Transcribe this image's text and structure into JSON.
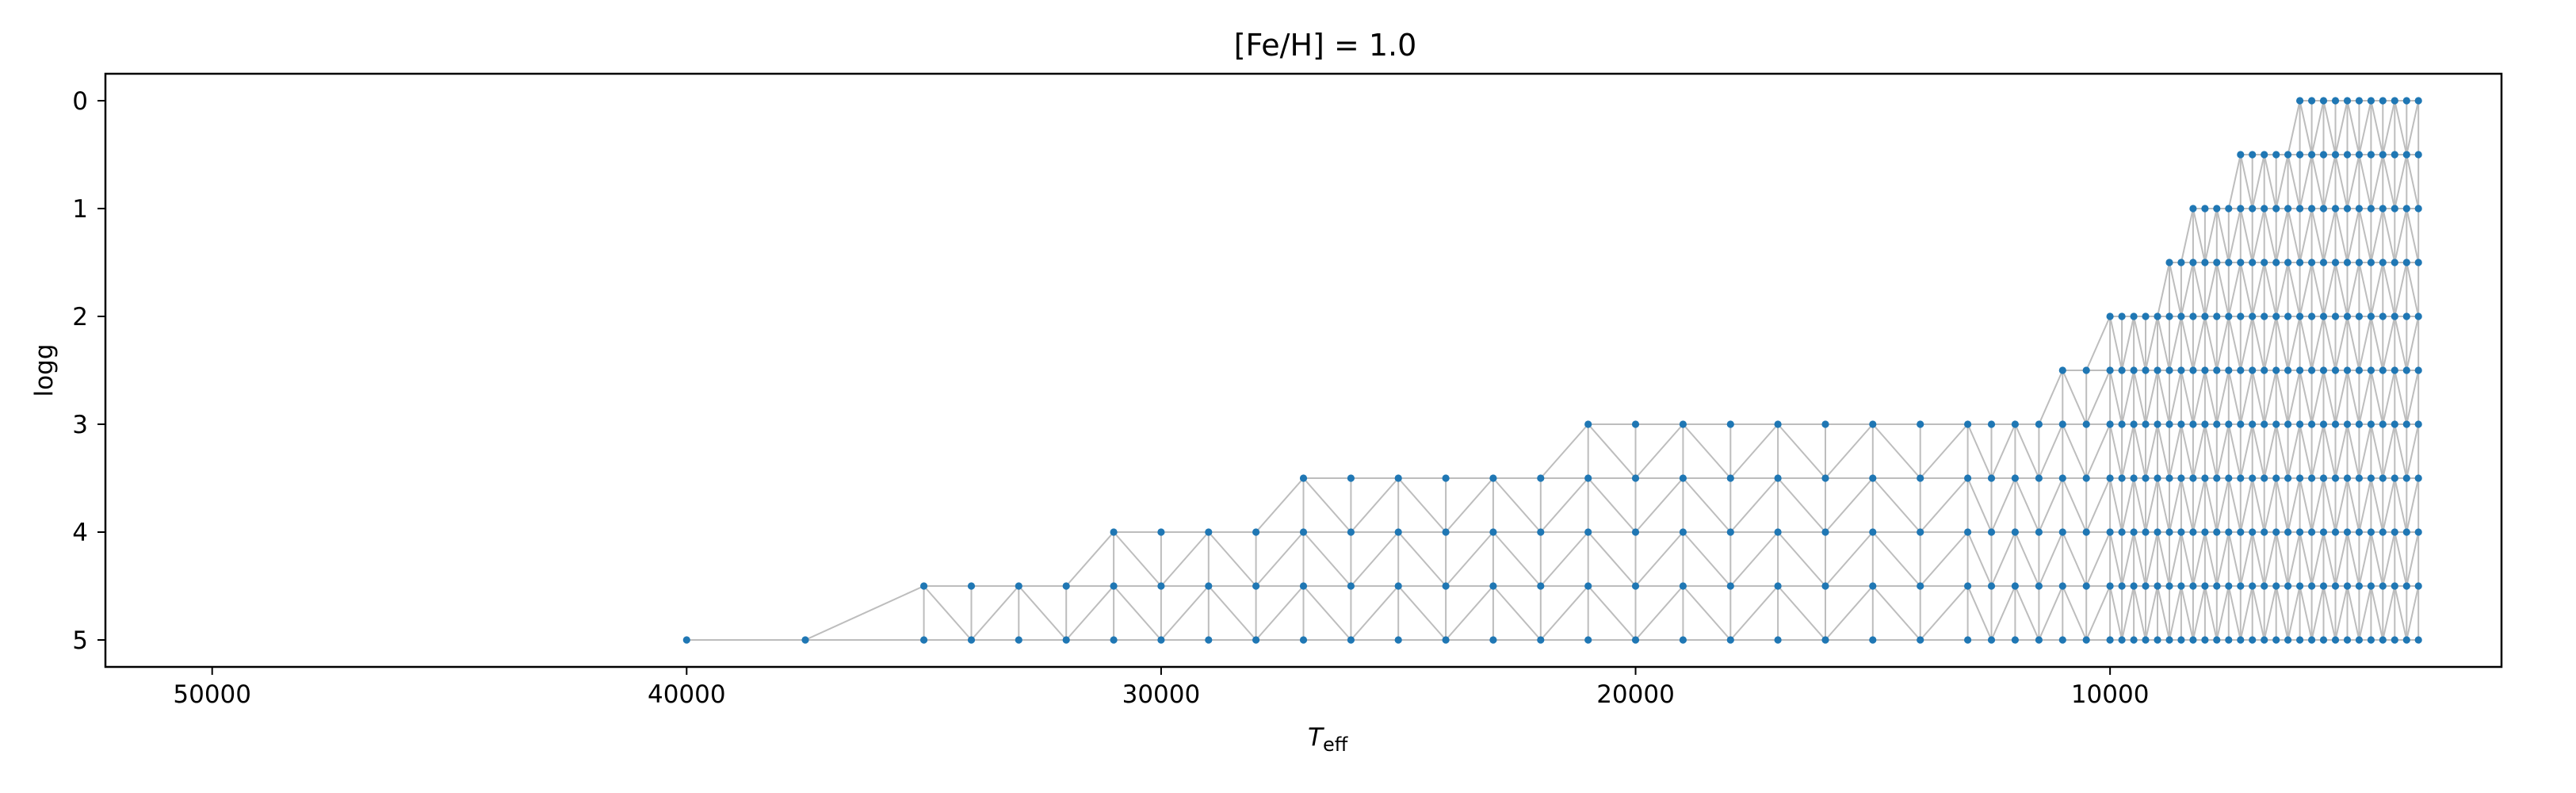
{
  "chart_data": {
    "type": "scatter",
    "title": "[Fe/H] = 1.0",
    "xlabel": {
      "main": "T",
      "sub": "eff"
    },
    "ylabel": "logg",
    "xlim": [
      52250,
      1750
    ],
    "ylim": [
      5.25,
      -0.25
    ],
    "x_ticks": [
      50000,
      40000,
      30000,
      20000,
      10000
    ],
    "y_ticks": [
      0,
      1,
      2,
      3,
      4,
      5
    ],
    "grid": false,
    "point_color": "#1f77b4",
    "edge_color": "#bdbdbd",
    "teff_groups": {
      "hot_main": [
        40000,
        37500
      ],
      "hot_5": [
        35000,
        34000,
        33000,
        32000,
        31000,
        30000,
        29000,
        28000,
        27000,
        26000,
        25000,
        24000,
        23000,
        22000,
        21000,
        20000,
        19000,
        18000,
        17000,
        16000,
        15000,
        14000,
        13000,
        12500,
        12000,
        11500,
        11000,
        10500
      ],
      "cool": [
        10000,
        9750,
        9500,
        9250,
        9000,
        8750,
        8500,
        8250,
        8000,
        7750,
        7500,
        7250,
        7000,
        6750,
        6500,
        6250,
        6000,
        5750,
        5500,
        5250,
        5000,
        4750,
        4500,
        4250,
        4000,
        3750,
        3500
      ]
    },
    "series": [
      {
        "logg": 0.0,
        "teff_min": 3500,
        "teff_max": 6000
      },
      {
        "logg": 0.5,
        "teff_min": 3500,
        "teff_max": 7250
      },
      {
        "logg": 1.0,
        "teff_min": 3500,
        "teff_max": 8250
      },
      {
        "logg": 1.5,
        "teff_min": 3500,
        "teff_max": 8750
      },
      {
        "logg": 2.0,
        "teff_min": 3500,
        "teff_max": 10000
      },
      {
        "logg": 2.5,
        "teff_min": 3500,
        "teff_max": 11000
      },
      {
        "logg": 3.0,
        "teff_min": 3500,
        "teff_max": 21000
      },
      {
        "logg": 3.5,
        "teff_min": 3500,
        "teff_max": 27000
      },
      {
        "logg": 4.0,
        "teff_min": 3500,
        "teff_max": 31000
      },
      {
        "logg": 4.5,
        "teff_min": 3500,
        "teff_max": 35000
      },
      {
        "logg": 5.0,
        "teff_min": 3500,
        "teff_max": 40000
      }
    ]
  }
}
